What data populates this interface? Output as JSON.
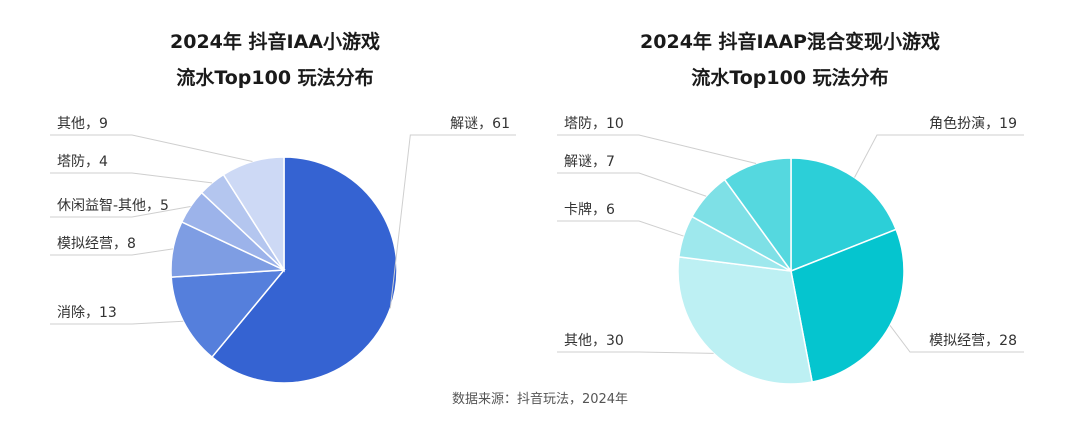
{
  "chart_data": [
    {
      "type": "pie",
      "title": "2024年 抖音IAA小游戏",
      "subtitle": "流水Top100 玩法分布",
      "slices": [
        {
          "label": "解谜",
          "value": 61,
          "display": "解谜，61",
          "color": "#3563d2"
        },
        {
          "label": "消除",
          "value": 13,
          "display": "消除，13",
          "color": "#557fdc"
        },
        {
          "label": "模拟经营",
          "value": 8,
          "display": "模拟经营，8",
          "color": "#7e9de3"
        },
        {
          "label": "休闲益智-其他",
          "value": 5,
          "display": "休闲益智-其他，5",
          "color": "#9cb3ea"
        },
        {
          "label": "塔防",
          "value": 4,
          "display": "塔防，4",
          "color": "#b4c6ef"
        },
        {
          "label": "其他",
          "value": 9,
          "display": "其他，9",
          "color": "#cdd9f5"
        }
      ]
    },
    {
      "type": "pie",
      "title": "2024年 抖音IAAP混合变现小游戏",
      "subtitle": "流水Top100 玩法分布",
      "slices": [
        {
          "label": "角色扮演",
          "value": 19,
          "display": "角色扮演，19",
          "color": "#2ccfd8"
        },
        {
          "label": "模拟经营",
          "value": 28,
          "display": "模拟经营，28",
          "color": "#05c5cf"
        },
        {
          "label": "其他",
          "value": 30,
          "display": "其他，30",
          "color": "#bdf0f3"
        },
        {
          "label": "卡牌",
          "value": 6,
          "display": "卡牌，6",
          "color": "#9ee8ed"
        },
        {
          "label": "解谜",
          "value": 7,
          "display": "解谜，7",
          "color": "#7ee0e6"
        },
        {
          "label": "塔防",
          "value": 10,
          "display": "塔防，10",
          "color": "#55d8df"
        }
      ]
    }
  ],
  "source": "数据来源：抖音玩法，2024年"
}
